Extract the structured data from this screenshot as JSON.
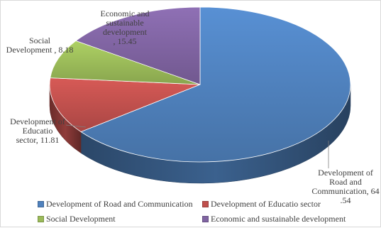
{
  "chart_data": {
    "type": "pie",
    "style": "3d",
    "title": "",
    "slices": [
      {
        "name": "Development of Road and Communication",
        "value": 64.54,
        "color": "#4F81BD",
        "label_lines": [
          "Development of",
          "Road and",
          "Communication, 64",
          ".54"
        ]
      },
      {
        "name": "Development of Educatio sector",
        "value": 11.81,
        "color": "#C0504D",
        "label_lines": [
          "Development of",
          "Educatio",
          "sector, 11.81"
        ]
      },
      {
        "name": "Social Development",
        "value": 8.18,
        "color": "#9BBB59",
        "label_lines": [
          "Social",
          "Development , 8.18"
        ]
      },
      {
        "name": "Economic and sustainable development",
        "value": 15.45,
        "color": "#8064A2",
        "label_lines": [
          "Economic and",
          "sustainable",
          "development",
          ", 15.45"
        ]
      }
    ],
    "legend_position": "bottom"
  }
}
